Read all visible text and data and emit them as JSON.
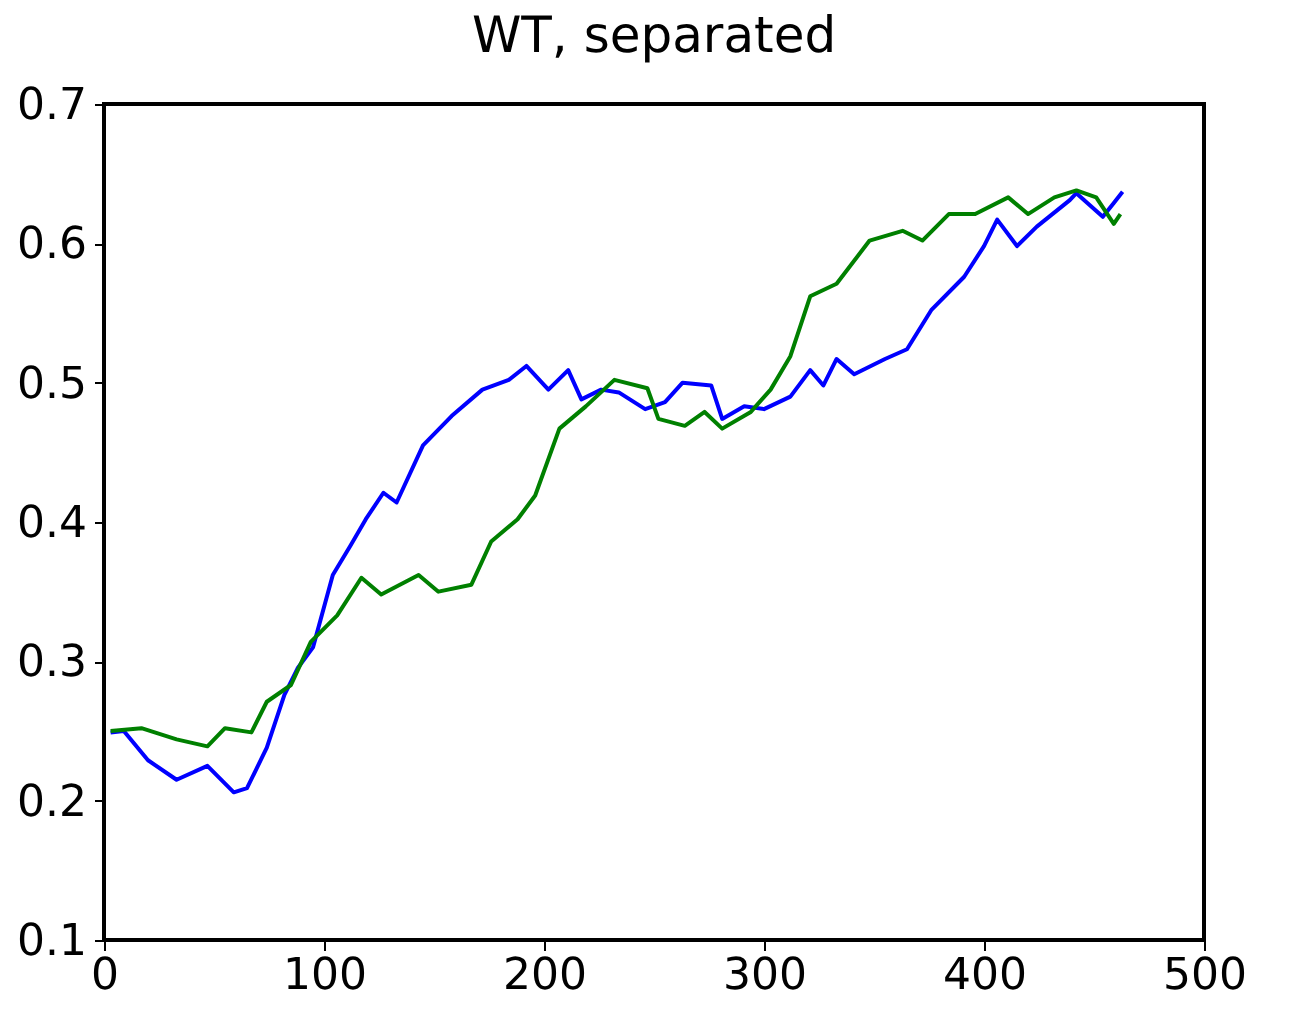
{
  "chart_data": {
    "type": "line",
    "title": "WT, separated",
    "xlim": [
      0,
      500
    ],
    "ylim": [
      0.1,
      0.7
    ],
    "xticks": [
      0,
      100,
      200,
      300,
      400,
      500
    ],
    "yticks": [
      0.1,
      0.2,
      0.3,
      0.4,
      0.5,
      0.6,
      0.7
    ],
    "grid": false,
    "legend": false,
    "marker": "none",
    "line_style": "solid",
    "series": [
      {
        "color": "#0000ff",
        "x": [
          3,
          9,
          20,
          33,
          47,
          59,
          65,
          74,
          82,
          88,
          95,
          104,
          112,
          119,
          127,
          133,
          145,
          158,
          172,
          184,
          192,
          202,
          211,
          217,
          226,
          234,
          246,
          255,
          263,
          276,
          281,
          291,
          300,
          312,
          321,
          327,
          333,
          341,
          355,
          365,
          376,
          391,
          400,
          406,
          415,
          424,
          439,
          442,
          454,
          459,
          463
        ],
        "values": [
          0.249,
          0.25,
          0.229,
          0.215,
          0.225,
          0.206,
          0.209,
          0.238,
          0.276,
          0.295,
          0.31,
          0.362,
          0.383,
          0.402,
          0.421,
          0.414,
          0.455,
          0.476,
          0.495,
          0.502,
          0.512,
          0.495,
          0.509,
          0.488,
          0.495,
          0.493,
          0.481,
          0.486,
          0.5,
          0.498,
          0.474,
          0.483,
          0.481,
          0.49,
          0.509,
          0.498,
          0.517,
          0.506,
          0.517,
          0.524,
          0.552,
          0.576,
          0.598,
          0.617,
          0.598,
          0.612,
          0.631,
          0.636,
          0.619,
          0.629,
          0.637
        ]
      },
      {
        "color": "#008000",
        "x": [
          3,
          17,
          33,
          47,
          55,
          67,
          74,
          85,
          94,
          106,
          117,
          126,
          143,
          152,
          167,
          176,
          188,
          196,
          207,
          219,
          232,
          247,
          252,
          264,
          273,
          281,
          294,
          303,
          312,
          321,
          333,
          348,
          363,
          372,
          384,
          396,
          411,
          420,
          432,
          442,
          451,
          459,
          462
        ],
        "values": [
          0.25,
          0.252,
          0.244,
          0.239,
          0.252,
          0.249,
          0.271,
          0.283,
          0.314,
          0.333,
          0.36,
          0.348,
          0.362,
          0.35,
          0.355,
          0.386,
          0.402,
          0.419,
          0.467,
          0.483,
          0.502,
          0.496,
          0.474,
          0.469,
          0.479,
          0.467,
          0.479,
          0.495,
          0.519,
          0.562,
          0.571,
          0.602,
          0.609,
          0.602,
          0.621,
          0.621,
          0.633,
          0.621,
          0.633,
          0.638,
          0.633,
          0.614,
          0.621
        ]
      }
    ]
  }
}
